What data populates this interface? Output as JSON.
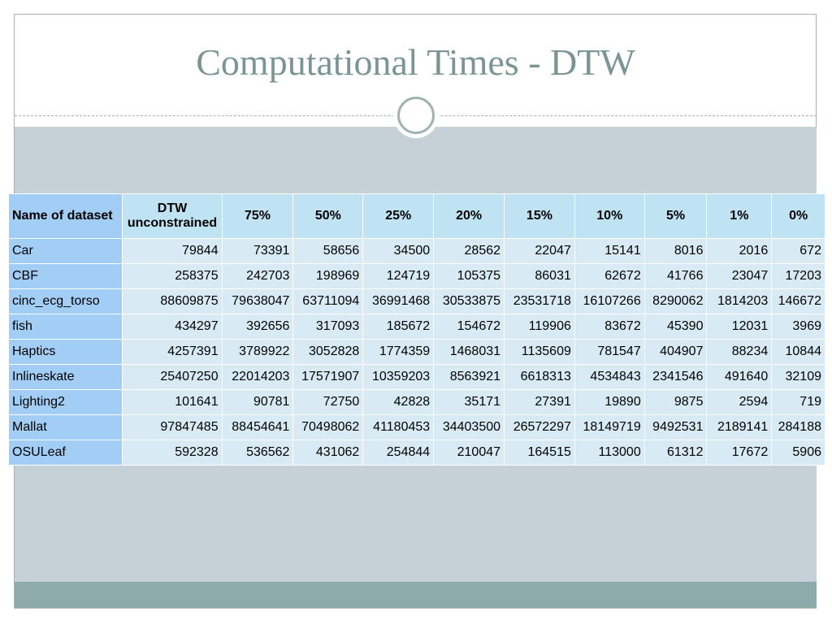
{
  "slide": {
    "title": "Computational Times - DTW",
    "table": {
      "header": [
        "Name of dataset",
        "DTW unconstrained",
        "75%",
        "50%",
        "25%",
        "20%",
        "15%",
        "10%",
        "5%",
        "1%",
        "0%"
      ],
      "rows": [
        [
          "Car",
          79844,
          73391,
          58656,
          34500,
          28562,
          22047,
          15141,
          8016,
          2016,
          672
        ],
        [
          "CBF",
          258375,
          242703,
          198969,
          124719,
          105375,
          86031,
          62672,
          41766,
          23047,
          17203
        ],
        [
          "cinc_ecg_torso",
          88609875,
          79638047,
          63711094,
          36991468,
          30533875,
          23531718,
          16107266,
          8290062,
          1814203,
          146672
        ],
        [
          "fish",
          434297,
          392656,
          317093,
          185672,
          154672,
          119906,
          83672,
          45390,
          12031,
          3969
        ],
        [
          "Haptics",
          4257391,
          3789922,
          3052828,
          1774359,
          1468031,
          1135609,
          781547,
          404907,
          88234,
          10844
        ],
        [
          "Inlineskate",
          25407250,
          22014203,
          17571907,
          10359203,
          8563921,
          6618313,
          4534843,
          2341546,
          491640,
          32109
        ],
        [
          "Lighting2",
          101641,
          90781,
          72750,
          42828,
          35171,
          27391,
          19890,
          9875,
          2594,
          719
        ],
        [
          "Mallat",
          97847485,
          88454641,
          70498062,
          41180453,
          34403500,
          26572297,
          18149719,
          9492531,
          2189141,
          284188
        ],
        [
          "OSULeaf",
          592328,
          536562,
          431062,
          254844,
          210047,
          164515,
          113000,
          61312,
          17672,
          5906
        ]
      ]
    }
  }
}
